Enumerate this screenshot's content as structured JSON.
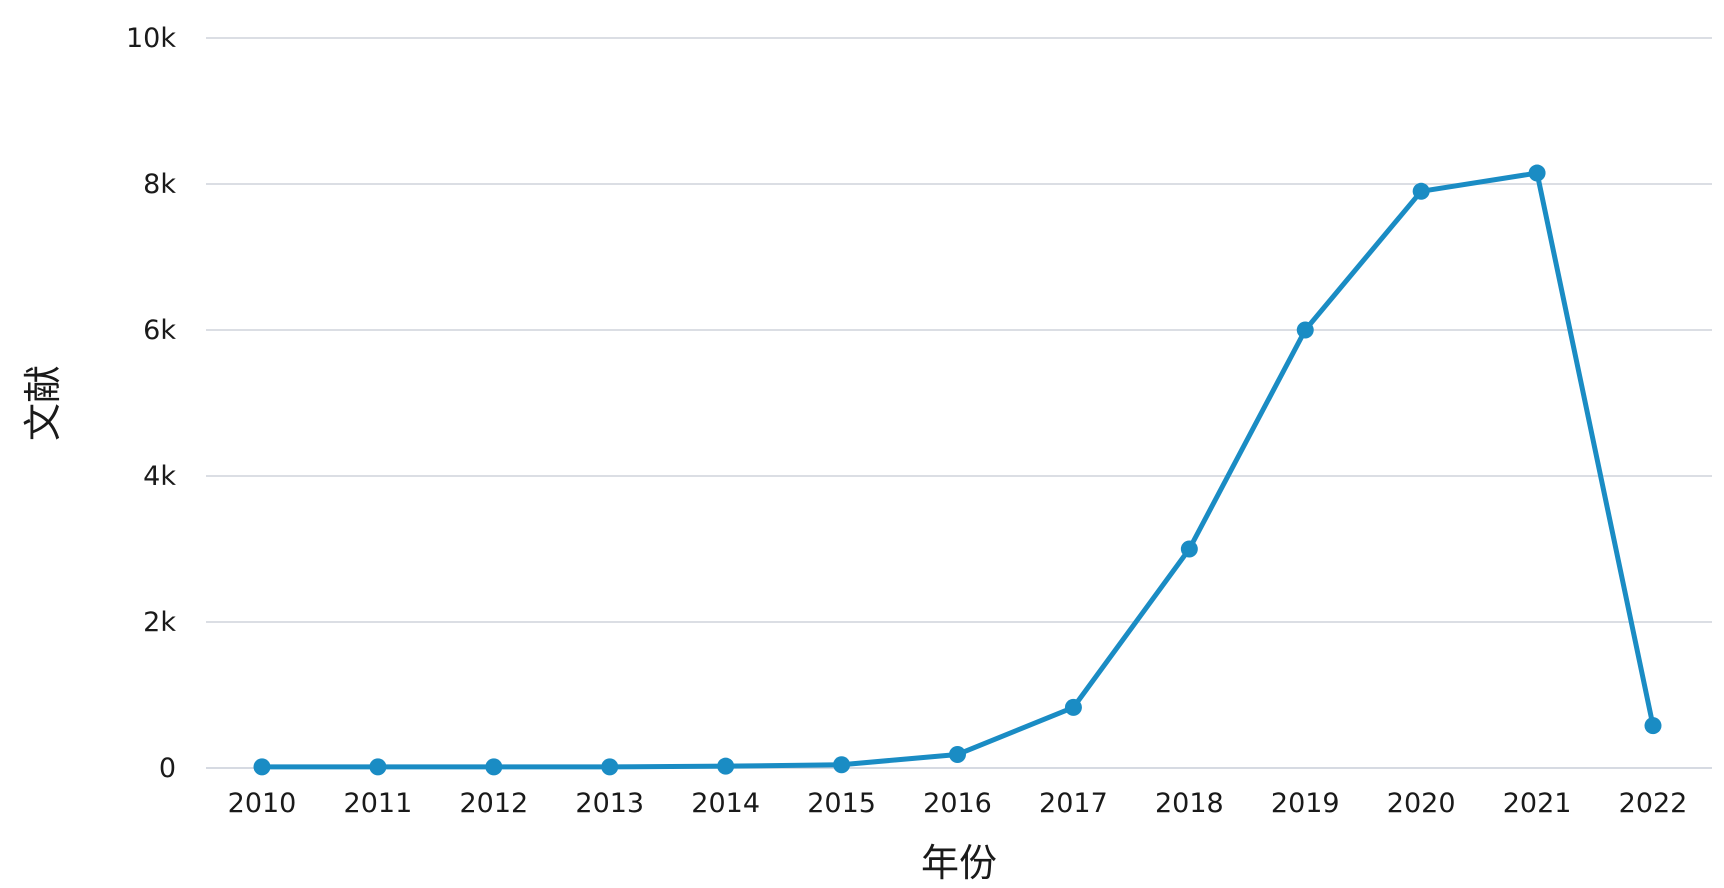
{
  "chart_data": {
    "type": "line",
    "title": "",
    "xlabel": "年份",
    "ylabel": "文献",
    "categories": [
      "2010",
      "2011",
      "2012",
      "2013",
      "2014",
      "2015",
      "2016",
      "2017",
      "2018",
      "2019",
      "2020",
      "2021",
      "2022"
    ],
    "series": [
      {
        "name": "",
        "values": [
          15,
          15,
          15,
          15,
          25,
          45,
          185,
          830,
          3000,
          6000,
          7900,
          8150,
          580
        ]
      }
    ],
    "ylim": [
      0,
      10000
    ],
    "yticks": [
      0,
      2000,
      4000,
      6000,
      8000,
      10000
    ],
    "ytick_labels": [
      "0",
      "2k",
      "4k",
      "6k",
      "8k",
      "10k"
    ],
    "grid": true,
    "legend": "none",
    "colors": {
      "series": "#1a8cc4",
      "grid": "#cfd4dc",
      "text": "#1a1a1a"
    }
  }
}
